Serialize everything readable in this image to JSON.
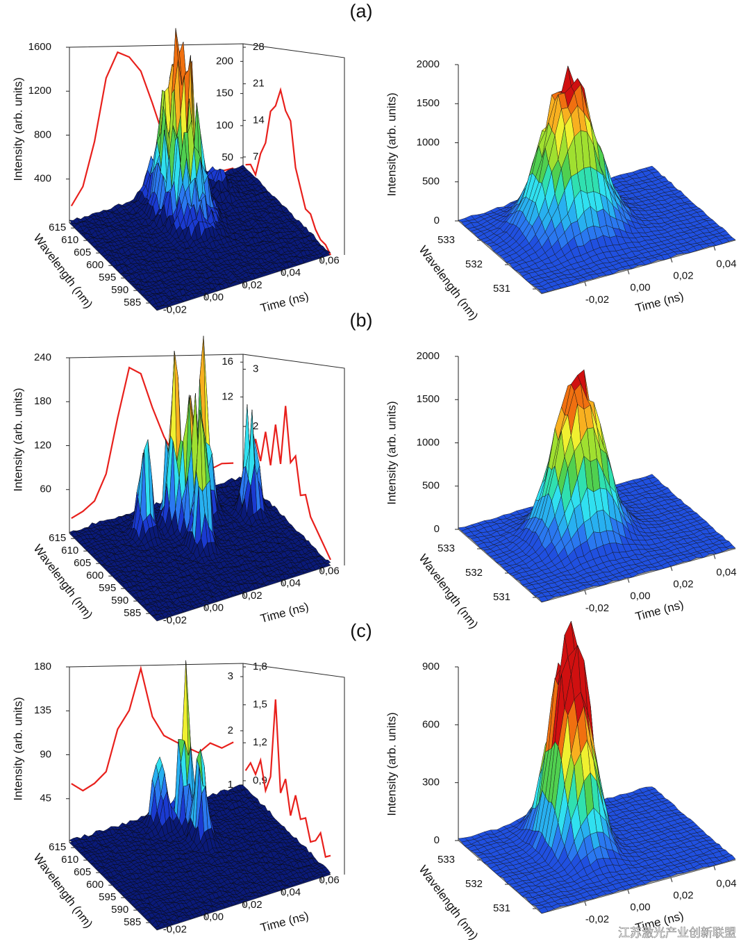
{
  "chart_data": [
    {
      "type": "surface3d",
      "panel_label": "(a)",
      "zlabel": "Intensity (arb. units)",
      "ylabel": "Wavelength (nm)",
      "xlabel": "Time (ns)",
      "xlim": [
        -0.025,
        0.065
      ],
      "xticks": [
        {
          "value": -0.02,
          "label": "-0,02"
        },
        {
          "value": 0,
          "label": "0,00"
        },
        {
          "value": 0.02,
          "label": "0,02"
        },
        {
          "value": 0.04,
          "label": "0,04"
        },
        {
          "value": 0.06,
          "label": "0,06"
        }
      ],
      "ylim": [
        617,
        582
      ],
      "yticks": [
        615,
        610,
        605,
        600,
        595,
        590,
        585
      ],
      "zlim": [
        0,
        1600
      ],
      "zticks": [
        400,
        800,
        1200,
        1600
      ],
      "z2lim": [
        35,
        222
      ],
      "z2ticks": [
        50,
        100,
        150,
        200
      ],
      "z3lim": [
        5,
        28
      ],
      "z3ticks": [
        7,
        14,
        21,
        28
      ],
      "time_profile": {
        "color": "#e8201c",
        "x": [
          -0.024,
          -0.018,
          -0.012,
          -0.006,
          0,
          0.006,
          0.012,
          0.018,
          0.024,
          0.03,
          0.036,
          0.042,
          0.048,
          0.054,
          0.06
        ],
        "values": [
          150,
          300,
          700,
          1300,
          1550,
          1500,
          1350,
          1000,
          600,
          300,
          150,
          80,
          50,
          40,
          30
        ]
      },
      "spectrum": {
        "color": "#e8201c",
        "y": [
          616,
          614,
          612,
          610,
          608,
          606,
          604,
          602,
          600,
          598,
          596,
          594,
          592,
          590,
          588,
          586,
          584,
          582
        ],
        "values": [
          6,
          7,
          6,
          11,
          14,
          21,
          23,
          27,
          24,
          23,
          15,
          12,
          9,
          9,
          7,
          6,
          6,
          5
        ]
      },
      "surface": {
        "floor_color": "#0b1a70",
        "line_color": "#0a0a0a",
        "colors": [
          "#0a1a78",
          "#1a3ad0",
          "#2a78f0",
          "#28b0f0",
          "#30e0f0",
          "#50d050",
          "#a0e030",
          "#f0f030",
          "#f8b020",
          "#f07010"
        ],
        "peaks": [
          {
            "x": 0.022,
            "y": 609,
            "z": 1230,
            "x_sigma": 0.006,
            "y_sigma": 5
          },
          {
            "x": 0.045,
            "y": 612,
            "z": 150,
            "x_sigma": 0.004,
            "y_sigma": 3
          }
        ]
      }
    },
    {
      "type": "surface3d",
      "zlabel": "Intensity (arb. units)",
      "ylabel": "Wavelength (nm)",
      "xlabel": "Time (ns)",
      "xlim": [
        -0.04,
        0.05
      ],
      "xticks": [
        {
          "value": -0.02,
          "label": "-0,02"
        },
        {
          "value": 0,
          "label": "0,00"
        },
        {
          "value": 0.02,
          "label": "0,02"
        },
        {
          "value": 0.04,
          "label": "0,04"
        }
      ],
      "ylim": [
        533.8,
        530.8
      ],
      "yticks": [
        533,
        532,
        531
      ],
      "zlim": [
        0,
        2000
      ],
      "zticks": [
        0,
        500,
        1000,
        1500,
        2000
      ],
      "surface": {
        "floor_color": "#9a9a9a",
        "line_color": "#151515",
        "colors": [
          "#2050e0",
          "#2a78f0",
          "#28b0f0",
          "#30e0f0",
          "#30e0b0",
          "#50d050",
          "#a0e030",
          "#f0f030",
          "#f8b020",
          "#f07010",
          "#d01010"
        ],
        "peaks": [
          {
            "x": -0.004,
            "y": 532.6,
            "z": 1940,
            "x_sigma": 0.011,
            "y_sigma": 0.45
          }
        ]
      }
    },
    {
      "type": "surface3d",
      "panel_label": "(b)",
      "zlabel": "Intensity (arb. units)",
      "ylabel": "Wavelength (nm)",
      "xlabel": "Time (ns)",
      "xlim": [
        -0.025,
        0.065
      ],
      "xticks": [
        {
          "value": -0.02,
          "label": "-0,02"
        },
        {
          "value": 0,
          "label": "0,00"
        },
        {
          "value": 0.02,
          "label": "0,02"
        },
        {
          "value": 0.04,
          "label": "0,04"
        },
        {
          "value": 0.06,
          "label": "0,06"
        }
      ],
      "ylim": [
        617,
        582
      ],
      "yticks": [
        615,
        610,
        605,
        600,
        595,
        590,
        585
      ],
      "zlim": [
        0,
        240
      ],
      "zticks": [
        60,
        120,
        180,
        240
      ],
      "z2lim": [
        2.7,
        16.5
      ],
      "z2ticks": [
        12,
        16
      ],
      "z3lim": [
        1.1,
        3.2
      ],
      "z3ticks": [
        2,
        3
      ],
      "time_profile": {
        "color": "#e8201c",
        "x": [
          -0.024,
          -0.018,
          -0.012,
          -0.006,
          0,
          0.006,
          0.012,
          0.018,
          0.024,
          0.03,
          0.036,
          0.042,
          0.048,
          0.054,
          0.06
        ],
        "values": [
          20,
          25,
          35,
          70,
          150,
          225,
          215,
          160,
          110,
          70,
          45,
          40,
          35,
          40,
          35
        ]
      },
      "spectrum": {
        "color": "#e8201c",
        "y": [
          616,
          614,
          612,
          610,
          608,
          606,
          604,
          602,
          600,
          598,
          596,
          594,
          592,
          590,
          588,
          586,
          584,
          582
        ],
        "values": [
          1.6,
          1.4,
          2.0,
          1.7,
          2.3,
          1.8,
          2.6,
          2.0,
          3.1,
          2.2,
          2.4,
          1.8,
          1.9,
          1.6,
          1.5,
          1.4,
          1.3,
          1.2
        ]
      },
      "surface": {
        "floor_color": "#0b1a70",
        "line_color": "#0a0a0a",
        "colors": [
          "#0a1a78",
          "#1a3ad0",
          "#2a78f0",
          "#28b0f0",
          "#30e0f0",
          "#50d050",
          "#a0e030",
          "#f0f030",
          "#f8b020",
          "#f07010"
        ],
        "peaks": [
          {
            "x": 0.036,
            "y": 609.8,
            "z": 194,
            "x_sigma": 0.0025,
            "y_sigma": 1.5
          },
          {
            "x": 0.018,
            "y": 608.6,
            "z": 190,
            "x_sigma": 0.0025,
            "y_sigma": 1.5
          },
          {
            "x": 0.0235,
            "y": 605.3,
            "z": 190,
            "x_sigma": 0.0025,
            "y_sigma": 1.5
          },
          {
            "x": 0.004,
            "y": 609.2,
            "z": 123,
            "x_sigma": 0.0025,
            "y_sigma": 1.5
          },
          {
            "x": 0.021,
            "y": 599.6,
            "z": 161,
            "x_sigma": 0.0025,
            "y_sigma": 1.5
          },
          {
            "x": 0.054,
            "y": 605.4,
            "z": 133,
            "x_sigma": 0.0025,
            "y_sigma": 1.5
          }
        ]
      }
    },
    {
      "type": "surface3d",
      "zlabel": "Intensity (arb. units)",
      "ylabel": "Wavelength (nm)",
      "xlabel": "Time (ns)",
      "xlim": [
        -0.04,
        0.05
      ],
      "xticks": [
        {
          "value": -0.02,
          "label": "-0,02"
        },
        {
          "value": 0,
          "label": "0,00"
        },
        {
          "value": 0.02,
          "label": "0,02"
        },
        {
          "value": 0.04,
          "label": "0,04"
        }
      ],
      "ylim": [
        533.8,
        530.8
      ],
      "yticks": [
        533,
        532,
        531
      ],
      "zlim": [
        0,
        2000
      ],
      "zticks": [
        0,
        500,
        1000,
        1500,
        2000
      ],
      "surface": {
        "floor_color": "#9a9a9a",
        "line_color": "#151515",
        "colors": [
          "#2050e0",
          "#2a78f0",
          "#28b0f0",
          "#30e0f0",
          "#30e0b0",
          "#50d050",
          "#a0e030",
          "#f0f030",
          "#f8b020",
          "#f07010",
          "#d01010"
        ],
        "peaks": [
          {
            "x": -0.001,
            "y": 532.5,
            "z": 1850,
            "x_sigma": 0.01,
            "y_sigma": 0.4
          }
        ]
      }
    },
    {
      "type": "surface3d",
      "panel_label": "(c)",
      "zlabel": "Intensity (arb. units)",
      "ylabel": "Wavelength (nm)",
      "xlabel": "Time (ns)",
      "xlim": [
        -0.025,
        0.065
      ],
      "xticks": [
        {
          "value": -0.02,
          "label": "-0,02"
        },
        {
          "value": 0,
          "label": "0,00"
        },
        {
          "value": 0.02,
          "label": "0,02"
        },
        {
          "value": 0.04,
          "label": "0,04"
        },
        {
          "value": 0.06,
          "label": "0,06"
        }
      ],
      "ylim": [
        617,
        582
      ],
      "yticks": [
        615,
        610,
        605,
        600,
        595,
        590,
        585
      ],
      "zlim": [
        0,
        180
      ],
      "zticks": [
        45,
        90,
        135,
        180
      ],
      "z2lim": [
        0.96,
        3.18
      ],
      "z2ticks": [
        1,
        2,
        3
      ],
      "z3lim": [
        0.85,
        1.8
      ],
      "z3ticks": [
        {
          "value": 0.9,
          "label": "0,9"
        },
        {
          "value": 1.2,
          "label": "1,2"
        },
        {
          "value": 1.5,
          "label": "1,5"
        },
        {
          "value": 1.8,
          "label": "1,8"
        }
      ],
      "time_profile": {
        "color": "#e8201c",
        "x": [
          -0.024,
          -0.018,
          -0.012,
          -0.006,
          0,
          0.006,
          0.012,
          0.018,
          0.024,
          0.03,
          0.036,
          0.042,
          0.048,
          0.054,
          0.06
        ],
        "values": [
          60,
          50,
          55,
          65,
          110,
          130,
          178,
          120,
          95,
          85,
          75,
          65,
          75,
          65,
          70
        ]
      },
      "spectrum": {
        "color": "#e8201c",
        "y": [
          616,
          614,
          612,
          610,
          608,
          606,
          604,
          602,
          600,
          598,
          596,
          594,
          592,
          590,
          588,
          586,
          584,
          582
        ],
        "values": [
          1.0,
          1.1,
          1.05,
          1.2,
          1.0,
          1.15,
          1.8,
          1.1,
          1.25,
          1.0,
          1.2,
          1.05,
          1.1,
          0.95,
          1.0,
          1.1,
          0.95,
          1.0
        ]
      },
      "surface": {
        "floor_color": "#0b1a70",
        "line_color": "#0a0a0a",
        "colors": [
          "#0a1a78",
          "#1a3ad0",
          "#2a78f0",
          "#28b0f0",
          "#30e0f0",
          "#50d050",
          "#a0e030",
          "#f0f030",
          "#f8b020",
          "#f07010"
        ],
        "peaks": [
          {
            "x": 0.027,
            "y": 610.6,
            "z": 142,
            "x_sigma": 0.0025,
            "y_sigma": 1.5
          },
          {
            "x": 0.0167,
            "y": 613.1,
            "z": 71,
            "x_sigma": 0.0025,
            "y_sigma": 1.5
          },
          {
            "x": 0.0277,
            "y": 604.8,
            "z": 78,
            "x_sigma": 0.0025,
            "y_sigma": 1.5
          }
        ]
      }
    },
    {
      "type": "surface3d",
      "zlabel": "Intensity (arb. units)",
      "ylabel": "Wavelength (nm)",
      "xlabel": "Time (ns)",
      "xlim": [
        -0.04,
        0.05
      ],
      "xticks": [
        {
          "value": -0.02,
          "label": "-0,02"
        },
        {
          "value": 0,
          "label": "0,00"
        },
        {
          "value": 0.02,
          "label": "0,02"
        },
        {
          "value": 0.04,
          "label": "0,04"
        }
      ],
      "ylim": [
        533.8,
        530.8
      ],
      "yticks": [
        533,
        532,
        531
      ],
      "zlim": [
        0,
        900
      ],
      "zticks": [
        0,
        300,
        600,
        900
      ],
      "surface": {
        "floor_color": "#9a9a9a",
        "line_color": "#151515",
        "colors": [
          "#2050e0",
          "#2a78f0",
          "#28b0f0",
          "#30e0f0",
          "#30e0b0",
          "#50d050",
          "#a0e030",
          "#f0f030",
          "#f8b020",
          "#f07010",
          "#d01010"
        ],
        "peaks": [
          {
            "x": -0.006,
            "y": 532.7,
            "z": 720,
            "x_sigma": 0.005,
            "y_sigma": 0.45
          },
          {
            "x": 0.002,
            "y": 532.7,
            "z": 760,
            "x_sigma": 0.005,
            "y_sigma": 0.45
          }
        ]
      }
    }
  ],
  "watermark": "江苏激光产业创新联盟"
}
